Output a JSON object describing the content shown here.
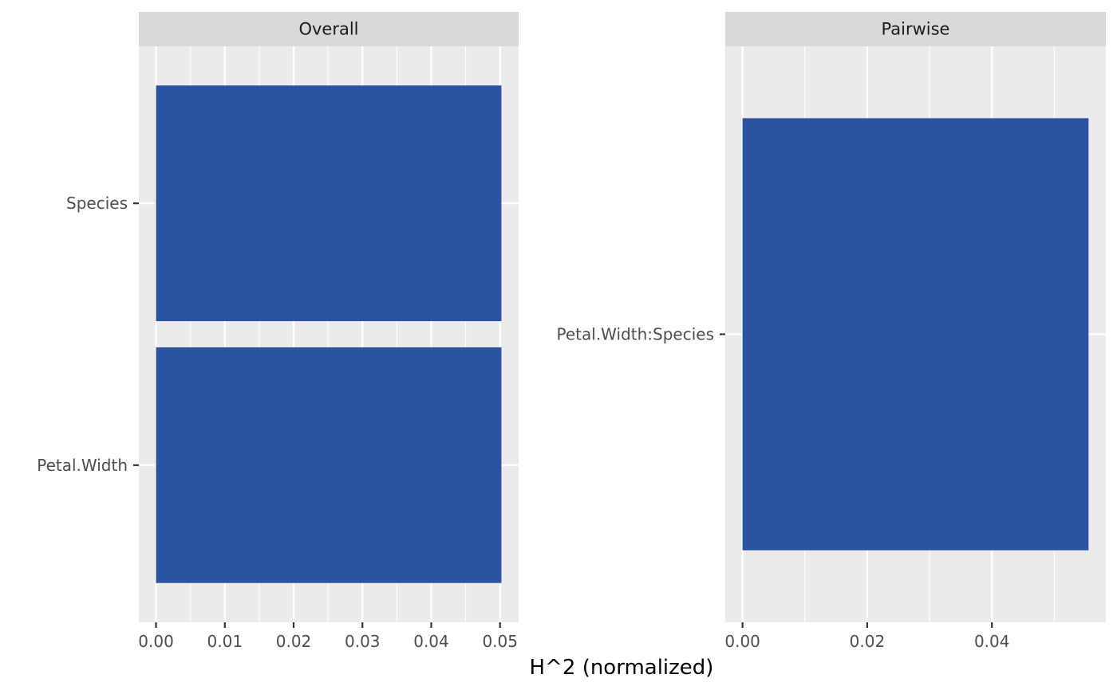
{
  "chart_data": [
    {
      "type": "bar",
      "orientation": "horizontal",
      "panel_title": "Overall",
      "categories": [
        "Species",
        "Petal.Width"
      ],
      "values": [
        0.0502,
        0.0502
      ],
      "xlim": [
        -0.0025,
        0.0527
      ],
      "x_ticks": [
        0.0,
        0.01,
        0.02,
        0.03,
        0.04,
        0.05
      ],
      "x_tick_labels": [
        "0.00",
        "0.01",
        "0.02",
        "0.03",
        "0.04",
        "0.05"
      ],
      "grid": true
    },
    {
      "type": "bar",
      "orientation": "horizontal",
      "panel_title": "Pairwise",
      "categories": [
        "Petal.Width:Species"
      ],
      "values": [
        0.0555
      ],
      "xlim": [
        -0.00277,
        0.05827
      ],
      "x_ticks": [
        0.0,
        0.02,
        0.04
      ],
      "x_tick_labels": [
        "0.00",
        "0.02",
        "0.04"
      ],
      "grid": true
    }
  ],
  "xlabel": "H^2 (normalized)",
  "colors": {
    "bar": "#2B53A1",
    "panel_bg": "#EBEBEB",
    "strip_bg": "#D9D9D9",
    "grid": "#FFFFFF"
  }
}
